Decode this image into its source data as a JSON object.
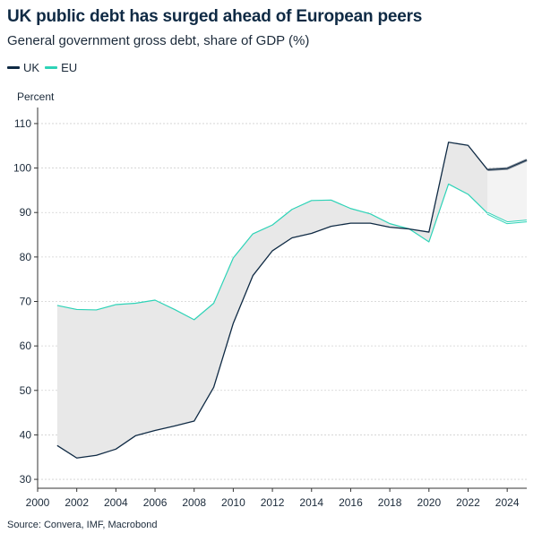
{
  "title": "UK public debt has surged ahead of European peers",
  "subtitle": "General government gross debt, share of GDP (%)",
  "source": "Source: Convera, IMF, Macrobond",
  "colors": {
    "uk": "#0f2a44",
    "eu": "#2ed3b7",
    "gap": "#e8e8e8",
    "gap_forecast": "#f3f3f3",
    "grid": "#d0d0d0"
  },
  "chart_data": {
    "type": "line",
    "title": "UK public debt has surged ahead of European peers",
    "ylabel": "Percent",
    "xlabel": "",
    "ylim": [
      28,
      112
    ],
    "xlim": [
      2000,
      2025
    ],
    "yticks": [
      30,
      40,
      50,
      60,
      70,
      80,
      90,
      100,
      110
    ],
    "xticks": [
      2000,
      2002,
      2004,
      2006,
      2008,
      2010,
      2012,
      2014,
      2016,
      2018,
      2020,
      2022,
      2024
    ],
    "forecast_start": 2023,
    "x": [
      2001,
      2002,
      2003,
      2004,
      2005,
      2006,
      2007,
      2008,
      2009,
      2010,
      2011,
      2012,
      2013,
      2014,
      2015,
      2016,
      2017,
      2018,
      2019,
      2020,
      2021,
      2022,
      2023,
      2024,
      2025
    ],
    "series": [
      {
        "name": "UK",
        "values": [
          37.6,
          34.8,
          35.4,
          36.8,
          39.8,
          41.0,
          42.0,
          43.1,
          50.7,
          65.1,
          75.8,
          81.4,
          84.3,
          85.3,
          86.9,
          87.6,
          87.6,
          86.7,
          86.3,
          85.6,
          105.8,
          105.1,
          99.6,
          99.9,
          101.8
        ]
      },
      {
        "name": "EU",
        "values": [
          69.1,
          68.2,
          68.1,
          69.3,
          69.6,
          70.3,
          68.2,
          65.9,
          69.6,
          79.8,
          85.2,
          87.2,
          90.7,
          92.7,
          92.8,
          90.9,
          89.7,
          87.5,
          86.3,
          83.4,
          96.4,
          94.1,
          89.8,
          87.7,
          88.1
        ]
      }
    ]
  }
}
